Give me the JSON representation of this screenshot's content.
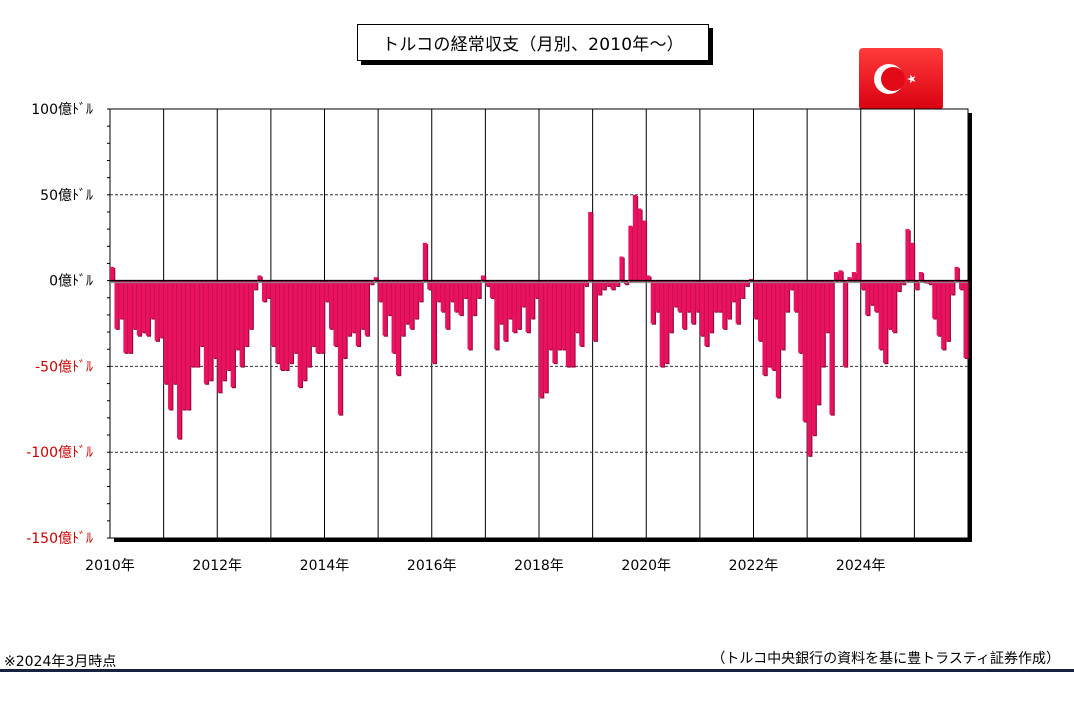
{
  "title": "トルコの経常収支（月別、2010年～）",
  "footnote": "※2024年3月時点",
  "source": "（トルコ中央銀行の資料を基に豊トラスティ証券作成）",
  "flag": {
    "name": "turkey-flag",
    "colors": {
      "red": "#e30a17",
      "white": "#ffffff"
    }
  },
  "colors": {
    "bar": "#e8125f",
    "bar_top": "#ff6a9a",
    "bar_side": "#9a0a3c",
    "negative_label": "#cc0000",
    "footer": "#17223f"
  },
  "chart_data": {
    "type": "bar",
    "title": "トルコの経常収支（月別、2010年～）",
    "xlabel": "",
    "ylabel": "",
    "ylim": [
      -150,
      100
    ],
    "xlim": [
      "2010-01",
      "2025-12"
    ],
    "grid": {
      "horizontal_dashed": [
        50,
        -50,
        -100
      ],
      "vertical_yearly": true
    },
    "yticks": [
      {
        "value": 100,
        "label": "100億ﾄﾞﾙ"
      },
      {
        "value": 50,
        "label": "50億ﾄﾞﾙ"
      },
      {
        "value": 0,
        "label": "0億ﾄﾞﾙ"
      },
      {
        "value": -50,
        "label": "-50億ﾄﾞﾙ"
      },
      {
        "value": -100,
        "label": "-100億ﾄﾞﾙ"
      },
      {
        "value": -150,
        "label": "-150億ﾄﾞﾙ"
      }
    ],
    "xticks": [
      "2010年",
      "2012年",
      "2014年",
      "2016年",
      "2018年",
      "2020年",
      "2022年",
      "2024年"
    ],
    "x_start": "2010-01",
    "values": [
      8,
      -28,
      -22,
      -42,
      -42,
      -28,
      -32,
      -30,
      -32,
      -22,
      -35,
      -33,
      -60,
      -75,
      -60,
      -92,
      -75,
      -75,
      -50,
      -50,
      -38,
      -60,
      -58,
      -45,
      -65,
      -58,
      -52,
      -62,
      -40,
      -50,
      -38,
      -28,
      -5,
      3,
      -12,
      -10,
      -38,
      -48,
      -52,
      -52,
      -48,
      -42,
      -62,
      -58,
      -50,
      -38,
      -42,
      -42,
      -12,
      -28,
      -38,
      -78,
      -45,
      -32,
      -30,
      -38,
      -28,
      -32,
      -2,
      2,
      -12,
      -32,
      -20,
      -42,
      -55,
      -32,
      -25,
      -28,
      -22,
      -12,
      22,
      -5,
      -48,
      -12,
      -18,
      -28,
      -12,
      -18,
      -20,
      -10,
      -40,
      -20,
      -10,
      3,
      -3,
      -10,
      -40,
      -25,
      -35,
      -22,
      -30,
      -28,
      -15,
      -30,
      -22,
      -10,
      -68,
      -65,
      -40,
      -48,
      -40,
      -40,
      -50,
      -50,
      -30,
      -38,
      -3,
      40,
      -35,
      -8,
      -5,
      -3,
      -5,
      -3,
      14,
      -2,
      32,
      50,
      42,
      35,
      3,
      -25,
      -18,
      -50,
      -48,
      -30,
      -15,
      -18,
      -28,
      -18,
      -25,
      -18,
      -32,
      -38,
      -30,
      -18,
      -18,
      -28,
      -22,
      -12,
      -25,
      -10,
      -3,
      1,
      -22,
      -35,
      -55,
      -50,
      -52,
      -68,
      -40,
      -18,
      -5,
      -18,
      -42,
      -82,
      -102,
      -90,
      -72,
      -50,
      -30,
      -78,
      5,
      6,
      -50,
      2,
      5,
      22,
      -5,
      -20,
      -14,
      -18,
      -40,
      -48,
      -28,
      -30,
      -6,
      -2,
      30,
      22,
      -5,
      5,
      -1,
      -2,
      -22,
      -32,
      -40,
      -35,
      -8,
      8,
      -5,
      -45
    ]
  }
}
